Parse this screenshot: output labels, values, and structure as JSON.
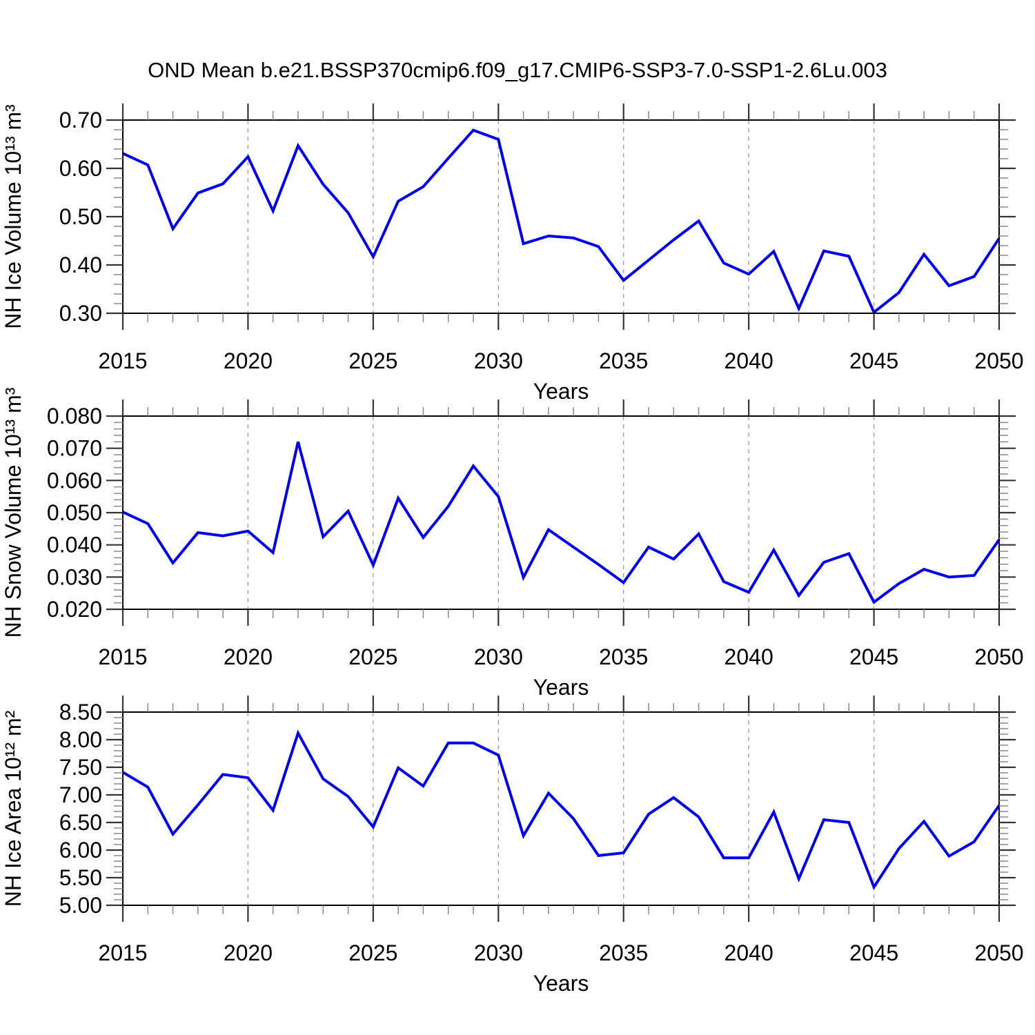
{
  "figure": {
    "title": "OND Mean b.e21.BSSP370cmip6.f09_g17.CMIP6-SSP3-7.0-SSP1-2.6Lu.003",
    "background_color": "#ffffff",
    "line_color": "#0000ee"
  },
  "chart_data": [
    {
      "id": "nh-ice-volume",
      "type": "line",
      "title": "",
      "ylabel": "NH Ice Volume 10¹³ m³",
      "xlabel": "Years",
      "ylim": [
        0.3,
        0.7
      ],
      "ytick_major": 0.1,
      "ytick_minor": 0.02,
      "ytick_labels": [
        "0.30",
        "0.40",
        "0.50",
        "0.60",
        "0.70"
      ],
      "xlim": [
        2015,
        2050
      ],
      "xtick_major": 5,
      "xtick_minor": 1,
      "xtick_labels": [
        "2015",
        "2020",
        "2025",
        "2030",
        "2035",
        "2040",
        "2045",
        "2050"
      ],
      "grid_x": [
        2020,
        2025,
        2030,
        2035,
        2040,
        2045
      ],
      "grid_style": "dashed-vertical",
      "legend": "none",
      "line_color": "#0000ee",
      "x": [
        2015,
        2016,
        2017,
        2018,
        2019,
        2020,
        2021,
        2022,
        2023,
        2024,
        2025,
        2026,
        2027,
        2028,
        2029,
        2030,
        2031,
        2032,
        2033,
        2034,
        2035,
        2036,
        2037,
        2038,
        2039,
        2040,
        2041,
        2042,
        2043,
        2044,
        2045,
        2046,
        2047,
        2048,
        2049,
        2050
      ],
      "values": [
        0.631,
        0.607,
        0.475,
        0.549,
        0.568,
        0.624,
        0.512,
        0.647,
        0.567,
        0.508,
        0.417,
        0.532,
        0.562,
        0.621,
        0.679,
        0.66,
        0.444,
        0.46,
        0.456,
        0.438,
        0.368,
        0.41,
        0.452,
        0.491,
        0.404,
        0.381,
        0.428,
        0.31,
        0.429,
        0.418,
        0.302,
        0.343,
        0.422,
        0.357,
        0.376,
        0.455
      ]
    },
    {
      "id": "nh-snow-volume",
      "type": "line",
      "title": "",
      "ylabel": "NH Snow Volume 10¹³ m³",
      "xlabel": "Years",
      "ylim": [
        0.02,
        0.08
      ],
      "ytick_major": 0.01,
      "ytick_minor": 0.002,
      "ytick_labels": [
        "0.020",
        "0.030",
        "0.040",
        "0.050",
        "0.060",
        "0.070",
        "0.080"
      ],
      "xlim": [
        2015,
        2050
      ],
      "xtick_major": 5,
      "xtick_minor": 1,
      "xtick_labels": [
        "2015",
        "2020",
        "2025",
        "2030",
        "2035",
        "2040",
        "2045",
        "2050"
      ],
      "grid_x": [
        2020,
        2025,
        2030,
        2035,
        2040,
        2045
      ],
      "grid_style": "dashed-vertical",
      "legend": "none",
      "line_color": "#0000ee",
      "x": [
        2015,
        2016,
        2017,
        2018,
        2019,
        2020,
        2021,
        2022,
        2023,
        2024,
        2025,
        2026,
        2027,
        2028,
        2029,
        2030,
        2031,
        2032,
        2033,
        2034,
        2035,
        2036,
        2037,
        2038,
        2039,
        2040,
        2041,
        2042,
        2043,
        2044,
        2045,
        2046,
        2047,
        2048,
        2049,
        2050
      ],
      "values": [
        0.0502,
        0.0466,
        0.0344,
        0.0438,
        0.0428,
        0.0443,
        0.0376,
        0.072,
        0.0425,
        0.0505,
        0.0337,
        0.0545,
        0.0423,
        0.052,
        0.0645,
        0.055,
        0.0299,
        0.0447,
        0.0393,
        0.0339,
        0.0283,
        0.0393,
        0.0356,
        0.0434,
        0.0286,
        0.0253,
        0.0384,
        0.0243,
        0.0346,
        0.0373,
        0.0222,
        0.028,
        0.0324,
        0.03,
        0.0305,
        0.0416
      ]
    },
    {
      "id": "nh-ice-area",
      "type": "line",
      "title": "",
      "ylabel": "NH Ice Area 10¹² m²",
      "xlabel": "Years",
      "ylim": [
        5.0,
        8.5
      ],
      "ytick_major": 0.5,
      "ytick_minor": 0.1,
      "ytick_labels": [
        "5.00",
        "5.50",
        "6.00",
        "6.50",
        "7.00",
        "7.50",
        "8.00",
        "8.50"
      ],
      "xlim": [
        2015,
        2050
      ],
      "xtick_major": 5,
      "xtick_minor": 1,
      "xtick_labels": [
        "2015",
        "2020",
        "2025",
        "2030",
        "2035",
        "2040",
        "2045",
        "2050"
      ],
      "grid_x": [
        2020,
        2025,
        2030,
        2035,
        2040,
        2045
      ],
      "grid_style": "dashed-vertical",
      "legend": "none",
      "line_color": "#0000ee",
      "x": [
        2015,
        2016,
        2017,
        2018,
        2019,
        2020,
        2021,
        2022,
        2023,
        2024,
        2025,
        2026,
        2027,
        2028,
        2029,
        2030,
        2031,
        2032,
        2033,
        2034,
        2035,
        2036,
        2037,
        2038,
        2039,
        2040,
        2041,
        2042,
        2043,
        2044,
        2045,
        2046,
        2047,
        2048,
        2049,
        2050
      ],
      "values": [
        7.41,
        7.14,
        6.29,
        6.82,
        7.37,
        7.31,
        6.72,
        8.12,
        7.29,
        6.97,
        6.42,
        7.49,
        7.16,
        7.94,
        7.94,
        7.72,
        6.26,
        7.03,
        6.57,
        5.9,
        5.95,
        6.65,
        6.95,
        6.6,
        5.86,
        5.86,
        6.69,
        5.48,
        6.55,
        6.5,
        5.33,
        6.03,
        6.52,
        5.89,
        6.15,
        6.81
      ]
    }
  ]
}
